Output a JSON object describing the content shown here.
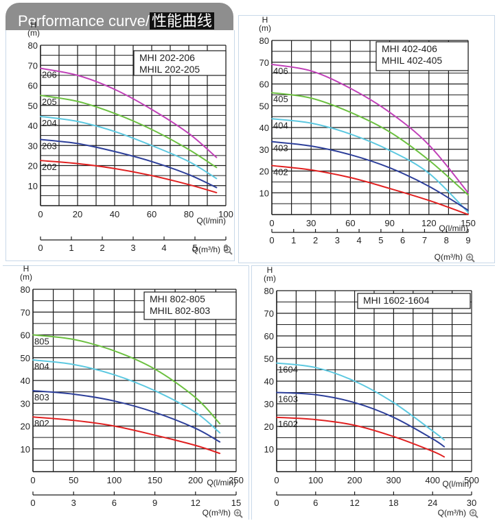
{
  "header": {
    "title_en": "Performance curve/",
    "title_cn": "性能曲线"
  },
  "colors": {
    "background": "#ffffff",
    "grid": "#1a1a1a",
    "banner": "#8e8e8e",
    "red": "#e02020",
    "blue": "#2d3f9a",
    "cyan": "#5cc8e0",
    "green": "#6cc040",
    "magenta": "#c040b8"
  },
  "icons": {
    "zoom": "zoom-in-icon"
  },
  "chart_data": [
    {
      "type": "line",
      "title": "MHI  202-206\nMHIL 202-205",
      "ylabel": "H\n(m)",
      "xlabel": "Q(l/min)",
      "xlabel2": "Q(m³/h)",
      "xlim": [
        0,
        100
      ],
      "ylim": [
        0,
        80
      ],
      "xticks": [
        0,
        20,
        40,
        60,
        80,
        100
      ],
      "yticks": [
        10,
        20,
        30,
        40,
        50,
        60,
        70,
        80
      ],
      "x2ticks": [
        0,
        1,
        2,
        3,
        4,
        5,
        6
      ],
      "grid": true,
      "series": [
        {
          "name": "206",
          "color": "#c040b8",
          "x": [
            0,
            20,
            40,
            60,
            80,
            95
          ],
          "y": [
            68.5,
            65,
            58,
            48,
            36,
            24
          ]
        },
        {
          "name": "205",
          "color": "#6cc040",
          "x": [
            0,
            20,
            40,
            60,
            80,
            95
          ],
          "y": [
            55,
            52,
            46,
            38,
            28,
            19
          ]
        },
        {
          "name": "204",
          "color": "#5cc8e0",
          "x": [
            0,
            20,
            40,
            60,
            80,
            95
          ],
          "y": [
            44.5,
            42,
            37,
            30,
            22,
            13.5
          ]
        },
        {
          "name": "203",
          "color": "#2d3f9a",
          "x": [
            0,
            20,
            40,
            60,
            80,
            95
          ],
          "y": [
            33,
            31,
            27,
            22,
            15.5,
            9
          ]
        },
        {
          "name": "202",
          "color": "#e02020",
          "x": [
            0,
            20,
            40,
            60,
            80,
            95
          ],
          "y": [
            22.5,
            21,
            18.5,
            15,
            10.5,
            6.5
          ]
        }
      ]
    },
    {
      "type": "line",
      "title": "MHI  402-406\nMHIL 402-405",
      "ylabel": "H\n(m)",
      "xlabel": "Q(l/min)",
      "xlabel2": "Q(m³/h)",
      "xlim": [
        0,
        150
      ],
      "ylim": [
        0,
        80
      ],
      "xticks": [
        0,
        30,
        60,
        90,
        120,
        150
      ],
      "yticks": [
        10,
        20,
        30,
        40,
        50,
        60,
        70,
        80
      ],
      "x2ticks": [
        0,
        1,
        2,
        3,
        4,
        5,
        6,
        7,
        8,
        9
      ],
      "grid": true,
      "series": [
        {
          "name": "406",
          "color": "#c040b8",
          "x": [
            0,
            30,
            60,
            90,
            120,
            150
          ],
          "y": [
            69,
            66,
            58,
            47,
            32,
            10
          ]
        },
        {
          "name": "405",
          "color": "#6cc040",
          "x": [
            0,
            30,
            60,
            90,
            120,
            150
          ],
          "y": [
            56,
            53.5,
            47,
            38,
            25,
            9
          ]
        },
        {
          "name": "404",
          "color": "#5cc8e0",
          "x": [
            0,
            30,
            60,
            90,
            120,
            150
          ],
          "y": [
            44,
            42,
            37,
            29.5,
            19,
            1
          ]
        },
        {
          "name": "403",
          "color": "#2d3f9a",
          "x": [
            0,
            30,
            60,
            90,
            120,
            150
          ],
          "y": [
            33.5,
            31.5,
            27.5,
            21.5,
            13,
            2
          ]
        },
        {
          "name": "402",
          "color": "#e02020",
          "x": [
            0,
            30,
            60,
            90,
            120,
            150
          ],
          "y": [
            22.5,
            20.5,
            17,
            12,
            6.5,
            0
          ]
        }
      ]
    },
    {
      "type": "line",
      "title": "MHI   802-805\nMHIL 802-803",
      "ylabel": "H\n(m)",
      "xlabel": "Q(l/min)",
      "xlabel2": "Q(m³/h)",
      "xlim": [
        0,
        250
      ],
      "ylim": [
        0,
        80
      ],
      "xticks": [
        0,
        50,
        100,
        150,
        200,
        250
      ],
      "yticks": [
        10,
        20,
        30,
        40,
        50,
        60,
        70,
        80
      ],
      "x2ticks": [
        0,
        3,
        6,
        9,
        12,
        15
      ],
      "grid": true,
      "series": [
        {
          "name": "805",
          "color": "#6cc040",
          "x": [
            0,
            50,
            100,
            150,
            200,
            230
          ],
          "y": [
            60,
            58,
            53,
            45,
            32.5,
            21
          ]
        },
        {
          "name": "804",
          "color": "#5cc8e0",
          "x": [
            0,
            50,
            100,
            150,
            200,
            230
          ],
          "y": [
            49,
            47,
            42.5,
            35.5,
            26,
            17
          ]
        },
        {
          "name": "803",
          "color": "#2d3f9a",
          "x": [
            0,
            50,
            100,
            150,
            200,
            230
          ],
          "y": [
            35.5,
            34,
            31,
            26,
            19,
            13
          ]
        },
        {
          "name": "802",
          "color": "#e02020",
          "x": [
            0,
            50,
            100,
            150,
            200,
            230
          ],
          "y": [
            24,
            22.5,
            20,
            16,
            11.5,
            8
          ]
        }
      ]
    },
    {
      "type": "line",
      "title": "MHI 1602-1604",
      "ylabel": "H\n(m)",
      "xlabel": "Q(l/min)",
      "xlabel2": "Q(m³/h)",
      "xlim": [
        0,
        500
      ],
      "ylim": [
        0,
        80
      ],
      "xticks": [
        0,
        100,
        200,
        300,
        400,
        500
      ],
      "yticks": [
        10,
        20,
        30,
        40,
        50,
        60,
        70,
        80
      ],
      "x2ticks": [
        0,
        6,
        12,
        18,
        24,
        30
      ],
      "grid": true,
      "series": [
        {
          "name": "1604",
          "color": "#5cc8e0",
          "x": [
            0,
            100,
            200,
            300,
            400,
            430
          ],
          "y": [
            48,
            46,
            40,
            30.5,
            18,
            14
          ]
        },
        {
          "name": "1603",
          "color": "#2d3f9a",
          "x": [
            0,
            100,
            200,
            300,
            400,
            430
          ],
          "y": [
            35,
            34,
            30.5,
            24,
            14.5,
            11
          ]
        },
        {
          "name": "1602",
          "color": "#e02020",
          "x": [
            0,
            100,
            200,
            300,
            400,
            430
          ],
          "y": [
            24,
            23,
            20.5,
            15.5,
            9,
            6.5
          ]
        }
      ]
    }
  ]
}
